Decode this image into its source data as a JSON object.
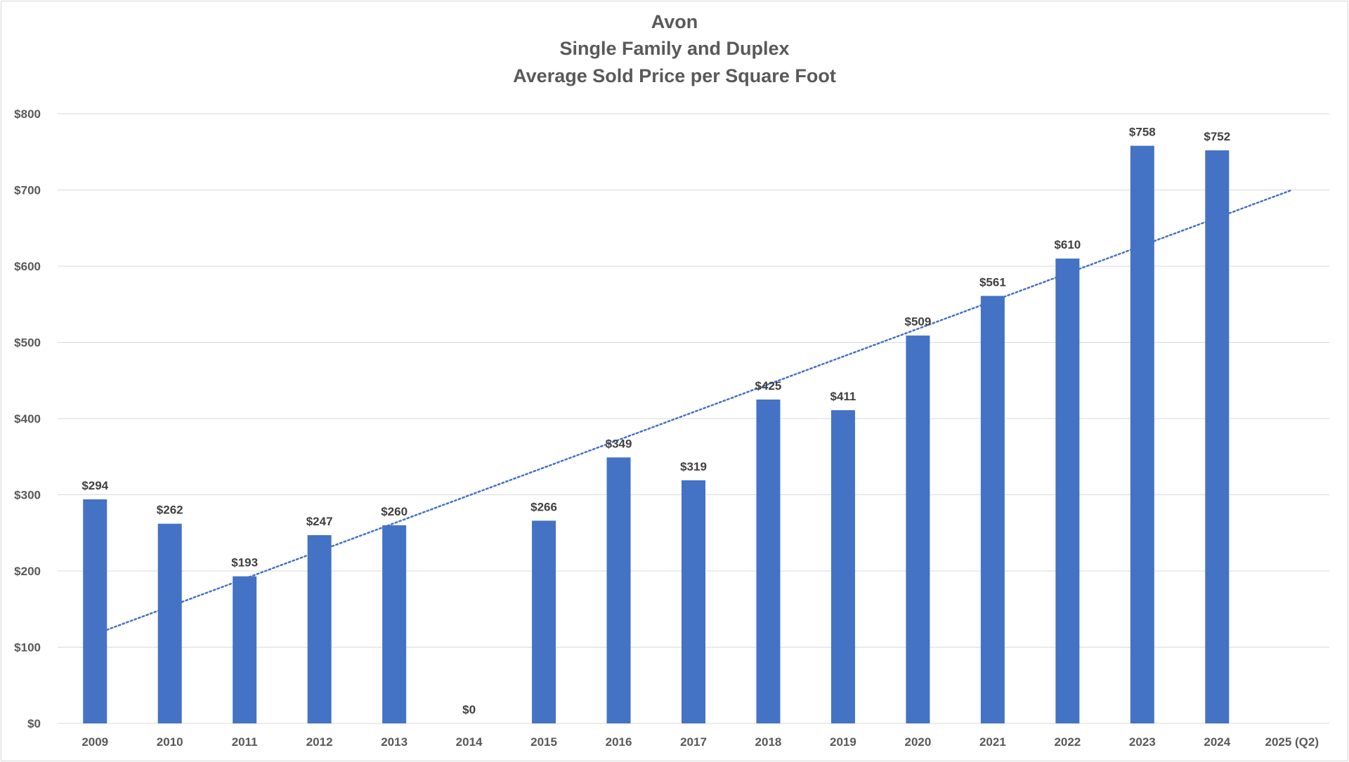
{
  "chart_data": {
    "type": "bar",
    "title_lines": [
      "Avon",
      "Single Family and Duplex",
      "Average Sold Price per Square Foot"
    ],
    "categories": [
      "2009",
      "2010",
      "2011",
      "2012",
      "2013",
      "2014",
      "2015",
      "2016",
      "2017",
      "2018",
      "2019",
      "2020",
      "2021",
      "2022",
      "2023",
      "2024",
      "2025 (Q2)"
    ],
    "values": [
      294,
      262,
      193,
      247,
      260,
      0,
      266,
      349,
      319,
      425,
      411,
      509,
      561,
      610,
      758,
      752,
      null
    ],
    "data_labels": [
      "$294",
      "$262",
      "$193",
      "$247",
      "$260",
      "$0",
      "$266",
      "$349",
      "$319",
      "$425",
      "$411",
      "$509",
      "$561",
      "$610",
      "$758",
      "$752",
      ""
    ],
    "ylim": [
      0,
      800
    ],
    "y_ticks": [
      0,
      100,
      200,
      300,
      400,
      500,
      600,
      700,
      800
    ],
    "y_tick_labels": [
      "$0",
      "$100",
      "$200",
      "$300",
      "$400",
      "$500",
      "$600",
      "$700",
      "$800"
    ],
    "xlabel": "",
    "ylabel": "",
    "grid": true,
    "legend": "none",
    "bar_color": "#4472c4",
    "trendline": {
      "type": "linear",
      "style": "dotted",
      "color": "#4472c4",
      "from_category": "2009",
      "to_category": "2025 (Q2)",
      "start_value": 117,
      "end_value": 700
    }
  }
}
